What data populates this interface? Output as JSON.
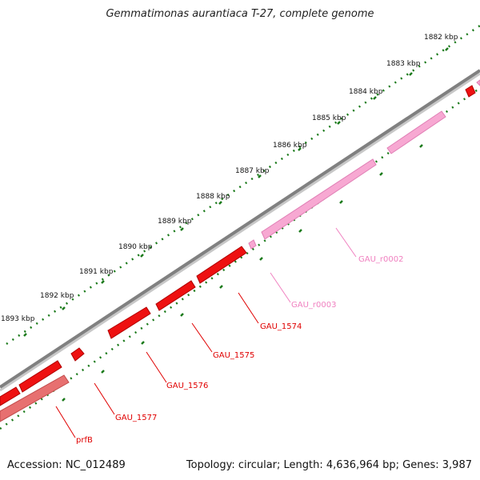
{
  "title": "Gemmatimonas aurantiaca T-27, complete genome",
  "footer": {
    "accession": "Accession: NC_012489",
    "summary": "Topology: circular; Length: 4,636,964 bp; Genes: 3,987"
  },
  "colors": {
    "backbone": "#808080",
    "tick": "#1a7a1a",
    "gene_red": "#ee1111",
    "gene_pink": "#f599c8",
    "gene_salmon": "#e77070"
  },
  "ruler_labels": [
    "1882 kbp",
    "1883 kbp",
    "1884 kbp",
    "1885 kbp",
    "1886 kbp",
    "1887 kbp",
    "1888 kbp",
    "1889 kbp",
    "1890 kbp",
    "1891 kbp",
    "1892 kbp",
    "1893 kbp"
  ],
  "gene_labels": [
    {
      "text": "GAU_r0002",
      "color": "#f080c0"
    },
    {
      "text": "GAU_r0003",
      "color": "#f080c0"
    },
    {
      "text": "GAU_1574",
      "color": "#e00000"
    },
    {
      "text": "GAU_1575",
      "color": "#e00000"
    },
    {
      "text": "GAU_1576",
      "color": "#e00000"
    },
    {
      "text": "GAU_1577",
      "color": "#e00000"
    },
    {
      "text": "prfB",
      "color": "#e00000"
    }
  ]
}
